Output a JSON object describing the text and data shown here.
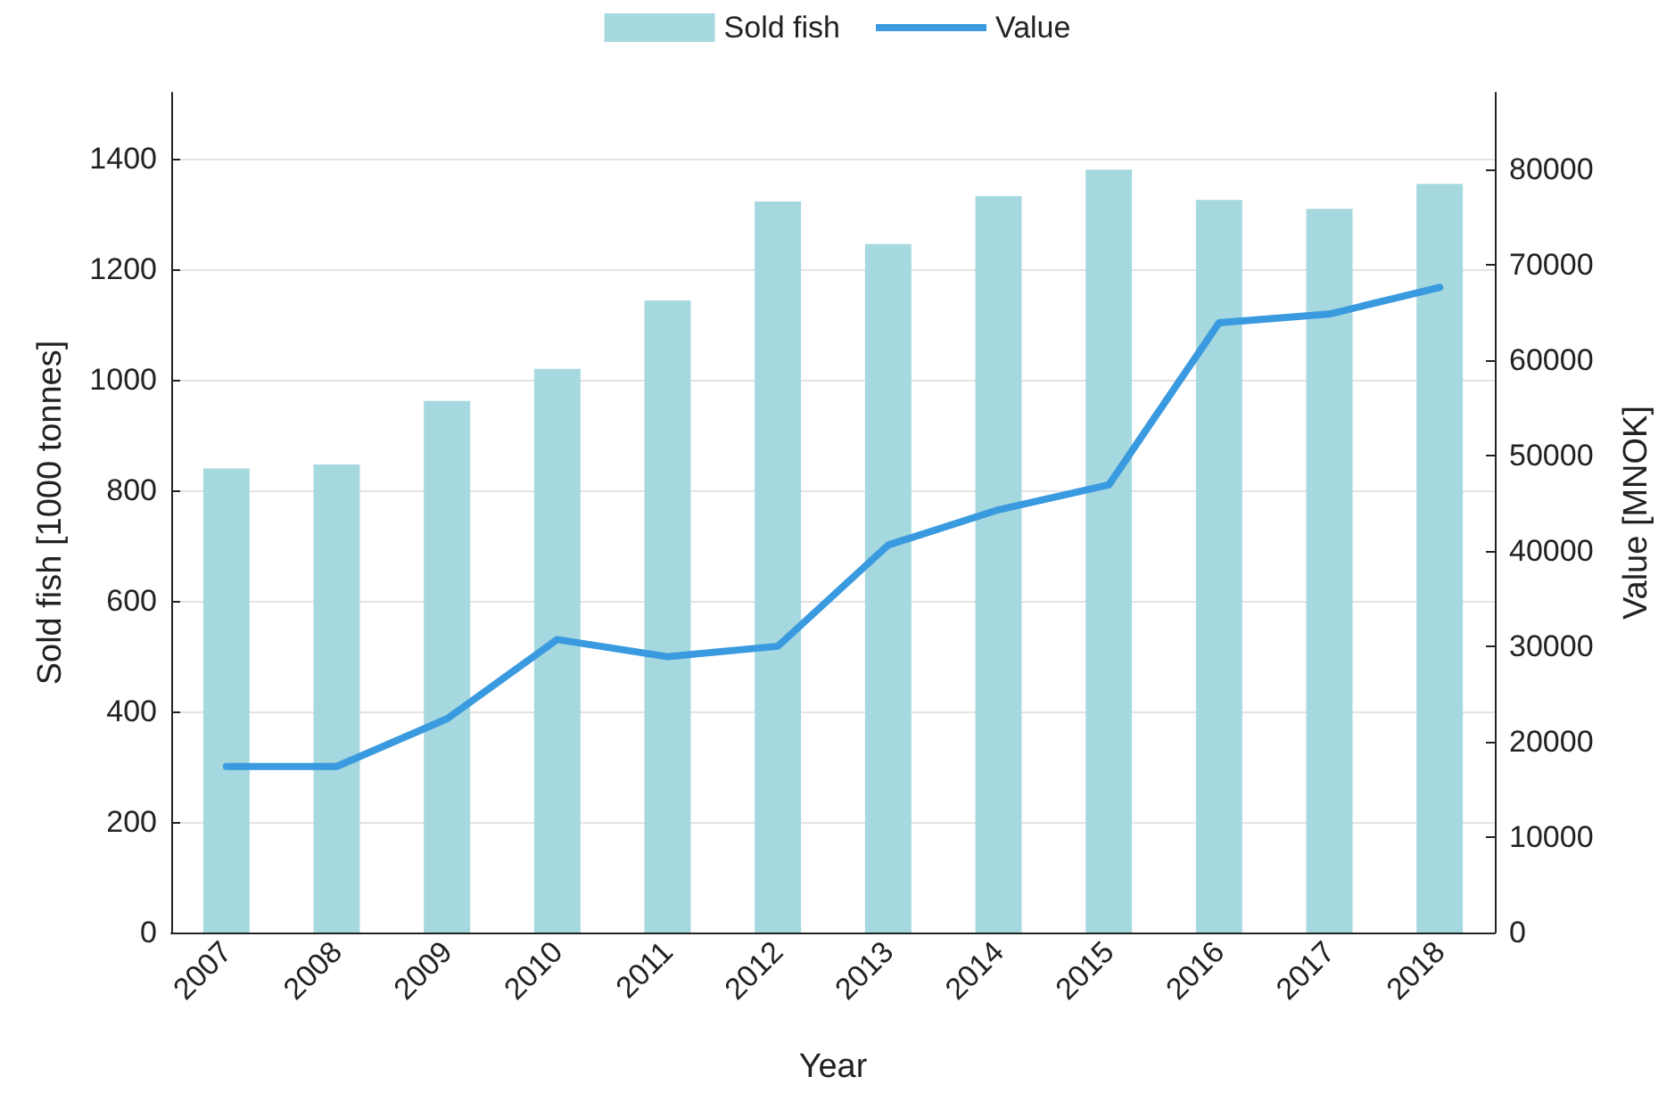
{
  "chart_data": {
    "type": "bar",
    "xlabel": "Year",
    "ylabel": "Sold fish [1000 tonnes]",
    "y2label": "Value [MNOK]",
    "categories": [
      "2007",
      "2008",
      "2009",
      "2010",
      "2011",
      "2012",
      "2013",
      "2014",
      "2015",
      "2016",
      "2017",
      "2018"
    ],
    "series": [
      {
        "name": "Sold fish",
        "color": "#a6d8df",
        "values": [
          840,
          847,
          962,
          1020,
          1144,
          1323,
          1246,
          1333,
          1381,
          1326,
          1310,
          1355
        ]
      },
      {
        "name": "Value",
        "type": "line",
        "axis": "y2",
        "color": "#3a9ae0",
        "values": [
          17400,
          17400,
          22400,
          30700,
          28900,
          30000,
          40600,
          44300,
          46900,
          63900,
          64800,
          67600
        ]
      }
    ],
    "ylim": [
      0,
      1520
    ],
    "yticks": [
      0,
      200,
      400,
      600,
      800,
      1000,
      1200,
      1400
    ],
    "y2lim": [
      0,
      88000
    ],
    "y2ticks": [
      0,
      10000,
      20000,
      30000,
      40000,
      50000,
      60000,
      70000,
      80000
    ],
    "grid": "y",
    "legend": "top",
    "marker": "none",
    "line_style": "solid"
  }
}
